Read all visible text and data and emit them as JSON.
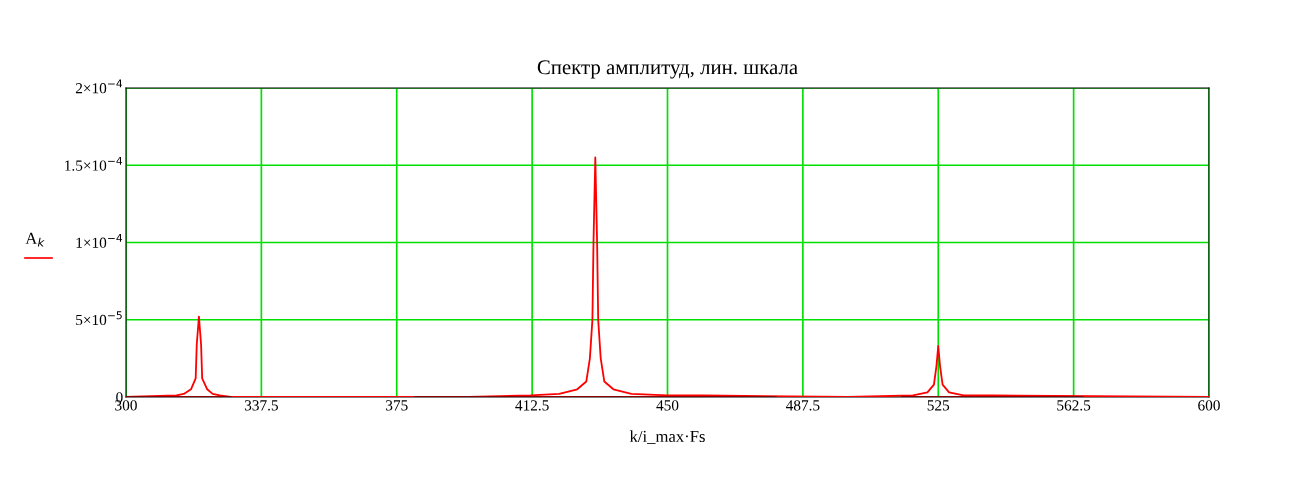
{
  "chart_data": {
    "type": "line",
    "title": "Спектр амплитуд, лин. шкала",
    "xlabel": "k/i_max·Fs",
    "ylabel": "A$_{k}$",
    "series": [
      {
        "name": null,
        "color": "#ff0000",
        "x": [
          300,
          314,
          316,
          318,
          319.3,
          319.6,
          320.2,
          320.8,
          321.1,
          322.5,
          324,
          326,
          329,
          395,
          412,
          420,
          425,
          427.5,
          428.5,
          429.2,
          429.5,
          430,
          430.5,
          430.8,
          431.5,
          432.5,
          435,
          440,
          450,
          460,
          500,
          518,
          522,
          523.8,
          524.5,
          525,
          525.5,
          526.2,
          528,
          532,
          540,
          600
        ],
        "values": [
          0,
          1e-06,
          2e-06,
          5e-06,
          1.2e-05,
          3.4e-05,
          5.2e-05,
          3.4e-05,
          1.2e-05,
          5e-06,
          2e-06,
          1e-06,
          0,
          0,
          1e-06,
          2e-06,
          5e-06,
          1e-05,
          2.5e-05,
          5e-05,
          0.0001,
          0.000155,
          0.0001,
          5e-05,
          2.5e-05,
          1e-05,
          5e-06,
          2e-06,
          1e-06,
          1e-06,
          0,
          1e-06,
          3e-06,
          8e-06,
          2e-05,
          3.3e-05,
          2e-05,
          8e-06,
          3e-06,
          1e-06,
          1e-06,
          0
        ]
      },
      {
        "name": null,
        "color": "#8b0000",
        "x": [
          300,
          329,
          354,
          380,
          480,
          498,
          515,
          565
        ],
        "values": [
          0,
          0,
          null,
          0,
          0,
          null,
          0,
          0
        ]
      }
    ],
    "xlim": [
      300,
      600
    ],
    "xticks": [
      300,
      337.5,
      375,
      412.5,
      450,
      487.5,
      525,
      562.5,
      600
    ],
    "ylim": [
      0,
      0.0002
    ],
    "yticks": [
      0,
      {
        "value": 5e-05,
        "label": "5×10$^{−5}$"
      },
      {
        "value": 0.0001,
        "label": "1×10$^{−4}$"
      },
      {
        "value": 0.00015,
        "label": "1.5×10$^{−4}$"
      },
      {
        "value": 0.0002,
        "label": "2×10$^{−4}$"
      }
    ],
    "grid": true,
    "marker": "none",
    "line_style": "solid"
  }
}
